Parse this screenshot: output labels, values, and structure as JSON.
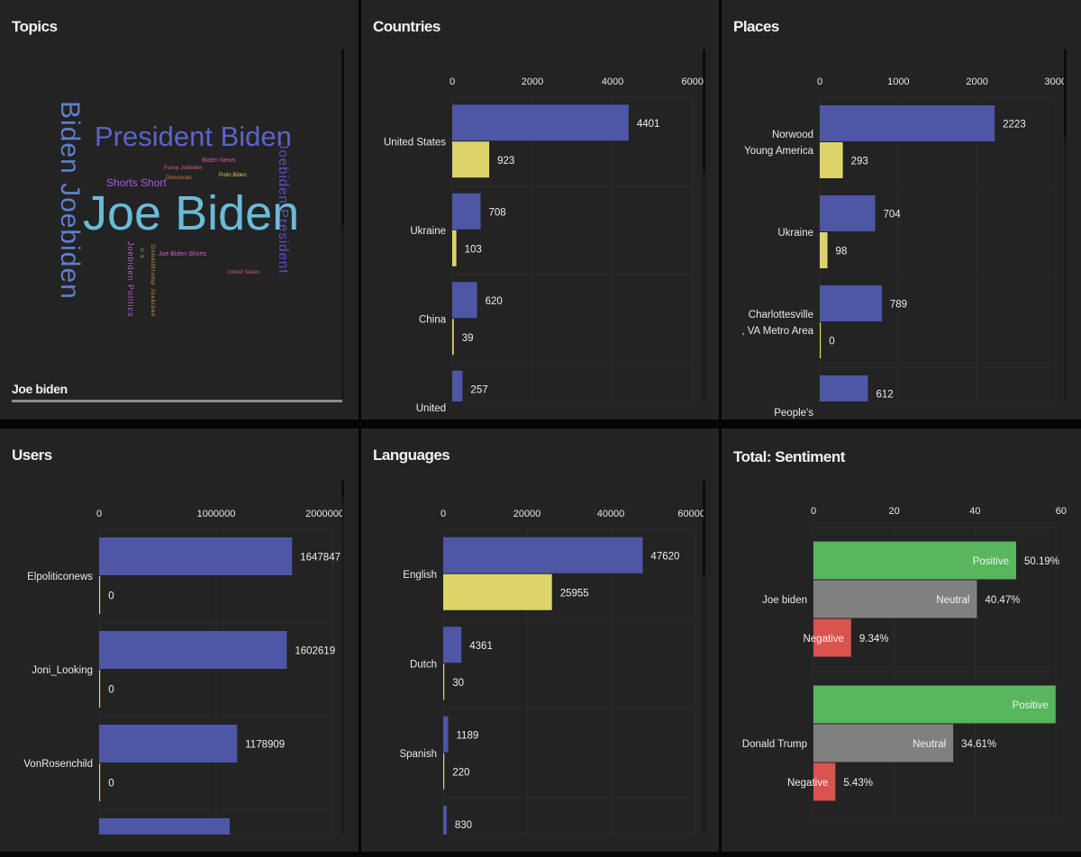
{
  "panels": {
    "topics": {
      "title": "Topics",
      "selected_topic": "Joe biden",
      "words": [
        {
          "text": "Joe Biden",
          "color": "#6bbbd8",
          "weight": 1.0
        },
        {
          "text": "Biden Joebiden",
          "color": "#5f7fce",
          "weight": 0.55,
          "vertical": true
        },
        {
          "text": "President Biden",
          "color": "#5b64c8",
          "weight": 0.62
        },
        {
          "text": "Joebiden President",
          "color": "#5b4fc8",
          "weight": 0.33,
          "vertical": true
        },
        {
          "text": "Shorts Short",
          "color": "#a75bd8",
          "weight": 0.25
        },
        {
          "text": "Biden News",
          "color": "#d44fa0",
          "weight": 0.15
        },
        {
          "text": "Funny Joebiden",
          "color": "#d06080",
          "weight": 0.12
        },
        {
          "text": "Democrats",
          "color": "#d07845",
          "weight": 0.12
        },
        {
          "text": "Putin Biden",
          "color": "#d2d25a",
          "weight": 0.12
        },
        {
          "text": "Joebiden Politics",
          "color": "#b45ad8",
          "weight": 0.18,
          "vertical": true
        },
        {
          "text": "U.S.",
          "color": "#9ac05a",
          "weight": 0.1,
          "vertical": true
        },
        {
          "text": "Donaldtrump Joebiden",
          "color": "#d0a050",
          "weight": 0.1,
          "vertical": true
        },
        {
          "text": "Joe Biden Shorts",
          "color": "#d45ad0",
          "weight": 0.14
        },
        {
          "text": "United States",
          "color": "#d05a70",
          "weight": 0.12
        }
      ]
    },
    "countries": {
      "title": "Countries"
    },
    "places": {
      "title": "Places"
    },
    "users": {
      "title": "Users"
    },
    "languages": {
      "title": "Languages"
    },
    "sentiment": {
      "title": "Total: Sentiment"
    }
  },
  "colors": {
    "series_a": "#4e56a6",
    "series_b": "#ddd46a",
    "positive": "#58b65c",
    "neutral": "#808080",
    "negative": "#d9534f",
    "panel_bg": "#232323",
    "grid": "#2c2c2c"
  },
  "chart_data": [
    {
      "id": "countries",
      "type": "bar",
      "orientation": "horizontal",
      "title": "Countries",
      "categories": [
        "United States",
        "Ukraine",
        "China",
        "United"
      ],
      "series": [
        {
          "name": "series_a",
          "values": [
            4401,
            708,
            620,
            257
          ]
        },
        {
          "name": "series_b",
          "values": [
            923,
            103,
            39,
            null
          ]
        }
      ],
      "xticks": [
        "0",
        "2000",
        "4000",
        "6000"
      ],
      "xlim": [
        0,
        6000
      ],
      "grid": true
    },
    {
      "id": "places",
      "type": "bar",
      "orientation": "horizontal",
      "title": "Places",
      "categories": [
        [
          "Norwood",
          "Young America"
        ],
        [
          "Ukraine"
        ],
        [
          "Charlottesville",
          ", VA Metro Area"
        ],
        [
          "People's"
        ]
      ],
      "series": [
        {
          "name": "series_a",
          "values": [
            2223,
            704,
            789,
            612
          ]
        },
        {
          "name": "series_b",
          "values": [
            293,
            98,
            0,
            null
          ]
        }
      ],
      "xticks": [
        "0",
        "1000",
        "2000",
        "3000"
      ],
      "xlim": [
        0,
        3000
      ],
      "grid": true
    },
    {
      "id": "users",
      "type": "bar",
      "orientation": "horizontal",
      "title": "Users",
      "categories": [
        "Elpoliticonews",
        "Joni_Looking",
        "VonRosenchild",
        ""
      ],
      "series": [
        {
          "name": "series_a",
          "values": [
            1647847,
            1602619,
            1178909,
            1115000
          ],
          "labels": [
            "1647847",
            "1602619",
            "1178909",
            ""
          ]
        },
        {
          "name": "series_b",
          "values": [
            0,
            0,
            0,
            null
          ]
        }
      ],
      "xticks": [
        "0",
        "1000000",
        "2000000"
      ],
      "xlim": [
        0,
        2000000
      ],
      "grid": true
    },
    {
      "id": "languages",
      "type": "bar",
      "orientation": "horizontal",
      "title": "Languages",
      "categories": [
        "English",
        "Dutch",
        "Spanish",
        ""
      ],
      "series": [
        {
          "name": "series_a",
          "values": [
            47620,
            4361,
            1189,
            830
          ]
        },
        {
          "name": "series_b",
          "values": [
            25955,
            30,
            220,
            null
          ]
        }
      ],
      "xticks": [
        "0",
        "20000",
        "40000",
        "60000"
      ],
      "xlim": [
        0,
        60000
      ],
      "grid": true
    },
    {
      "id": "sentiment",
      "type": "bar",
      "orientation": "horizontal",
      "title": "Total: Sentiment",
      "categories": [
        "Joe biden",
        "Donald Trump"
      ],
      "series": [
        {
          "name": "Positive",
          "values": [
            50.19,
            59.96
          ],
          "labels": [
            "50.19%",
            ""
          ]
        },
        {
          "name": "Neutral",
          "values": [
            40.47,
            34.61
          ],
          "labels": [
            "40.47%",
            "34.61%"
          ]
        },
        {
          "name": "Negative",
          "values": [
            9.34,
            5.43
          ],
          "labels": [
            "9.34%",
            "5.43%"
          ]
        }
      ],
      "xticks": [
        "0",
        "20",
        "40",
        "60"
      ],
      "xlim": [
        0,
        60
      ],
      "grid": true
    }
  ]
}
